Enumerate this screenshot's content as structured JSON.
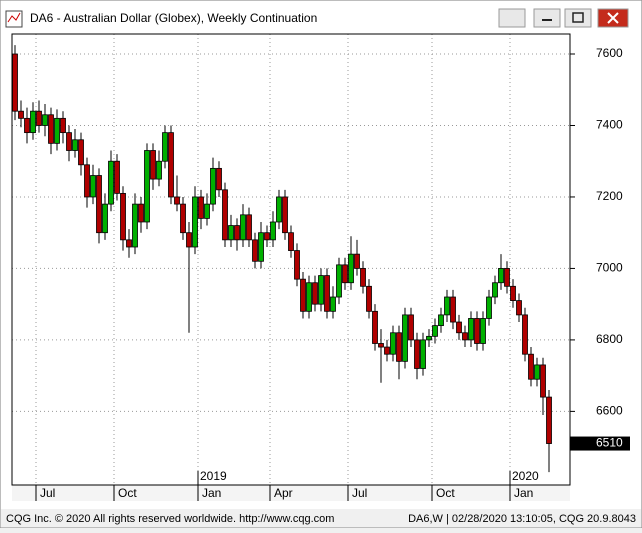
{
  "window_title": "DA6 - Australian Dollar (Globex), Weekly Continuation",
  "footer_left": "CQG Inc. © 2020 All rights reserved worldwide. http://www.cqg.com",
  "footer_right": "DA6,W | 02/28/2020 13:10:05, CQG 20.9.8043",
  "chart_data": {
    "type": "candlestick",
    "up_color": "#00b000",
    "down_color": "#b00000",
    "ylim": [
      6394,
      7656
    ],
    "yticks": [
      6600,
      6800,
      7000,
      7200,
      7400,
      7600
    ],
    "xlim": [
      -0.5,
      92.5
    ],
    "xticks": [
      {
        "value": 3.5,
        "label": "Jul"
      },
      {
        "value": 16.5,
        "label": "Oct"
      },
      {
        "value": 30.5,
        "label": "Jan"
      },
      {
        "value": 42.5,
        "label": "Apr"
      },
      {
        "value": 55.5,
        "label": "Jul"
      },
      {
        "value": 69.5,
        "label": "Oct"
      },
      {
        "value": 82.5,
        "label": "Jan"
      }
    ],
    "year_ticks": [
      {
        "value": 30.5,
        "label": "2019"
      },
      {
        "value": 82.5,
        "label": "2020"
      }
    ],
    "grid": true,
    "ohlc": [
      [
        7600,
        7625,
        7415,
        7440
      ],
      [
        7440,
        7470,
        7395,
        7420
      ],
      [
        7420,
        7450,
        7350,
        7380
      ],
      [
        7380,
        7465,
        7360,
        7440
      ],
      [
        7440,
        7470,
        7380,
        7400
      ],
      [
        7400,
        7460,
        7370,
        7430
      ],
      [
        7430,
        7450,
        7320,
        7350
      ],
      [
        7350,
        7445,
        7330,
        7420
      ],
      [
        7420,
        7440,
        7350,
        7380
      ],
      [
        7380,
        7400,
        7300,
        7330
      ],
      [
        7330,
        7390,
        7310,
        7360
      ],
      [
        7360,
        7380,
        7260,
        7290
      ],
      [
        7290,
        7310,
        7170,
        7200
      ],
      [
        7200,
        7290,
        7180,
        7260
      ],
      [
        7260,
        7280,
        7070,
        7100
      ],
      [
        7100,
        7210,
        7080,
        7180
      ],
      [
        7180,
        7330,
        7160,
        7300
      ],
      [
        7300,
        7320,
        7190,
        7210
      ],
      [
        7210,
        7230,
        7050,
        7080
      ],
      [
        7080,
        7110,
        7030,
        7060
      ],
      [
        7060,
        7210,
        7040,
        7180
      ],
      [
        7180,
        7200,
        7100,
        7130
      ],
      [
        7130,
        7350,
        7110,
        7330
      ],
      [
        7330,
        7350,
        7220,
        7250
      ],
      [
        7250,
        7330,
        7230,
        7300
      ],
      [
        7300,
        7400,
        7280,
        7380
      ],
      [
        7380,
        7400,
        7180,
        7200
      ],
      [
        7200,
        7260,
        7160,
        7180
      ],
      [
        7180,
        7200,
        7080,
        7100
      ],
      [
        7100,
        7130,
        6820,
        7060
      ],
      [
        7060,
        7230,
        7040,
        7200
      ],
      [
        7200,
        7220,
        7110,
        7140
      ],
      [
        7140,
        7210,
        7120,
        7180
      ],
      [
        7180,
        7310,
        7160,
        7280
      ],
      [
        7280,
        7300,
        7200,
        7220
      ],
      [
        7220,
        7240,
        7060,
        7080
      ],
      [
        7080,
        7150,
        7060,
        7120
      ],
      [
        7120,
        7140,
        7050,
        7080
      ],
      [
        7080,
        7180,
        7060,
        7150
      ],
      [
        7150,
        7170,
        7060,
        7080
      ],
      [
        7080,
        7100,
        7000,
        7020
      ],
      [
        7020,
        7130,
        7000,
        7100
      ],
      [
        7100,
        7120,
        7060,
        7080
      ],
      [
        7080,
        7160,
        7060,
        7130
      ],
      [
        7130,
        7220,
        7110,
        7200
      ],
      [
        7200,
        7220,
        7080,
        7100
      ],
      [
        7100,
        7120,
        7030,
        7050
      ],
      [
        7050,
        7070,
        6950,
        6970
      ],
      [
        6970,
        6990,
        6860,
        6880
      ],
      [
        6880,
        6980,
        6860,
        6960
      ],
      [
        6960,
        6980,
        6880,
        6900
      ],
      [
        6900,
        7000,
        6880,
        6980
      ],
      [
        6980,
        7000,
        6860,
        6880
      ],
      [
        6880,
        6950,
        6860,
        6920
      ],
      [
        6920,
        7030,
        6900,
        7010
      ],
      [
        7010,
        7030,
        6940,
        6960
      ],
      [
        6960,
        7090,
        6940,
        7040
      ],
      [
        7040,
        7080,
        6980,
        7000
      ],
      [
        7000,
        7020,
        6930,
        6950
      ],
      [
        6950,
        6970,
        6860,
        6880
      ],
      [
        6880,
        6900,
        6770,
        6790
      ],
      [
        6790,
        6830,
        6680,
        6780
      ],
      [
        6780,
        6800,
        6740,
        6760
      ],
      [
        6760,
        6840,
        6740,
        6820
      ],
      [
        6820,
        6840,
        6690,
        6740
      ],
      [
        6740,
        6890,
        6720,
        6870
      ],
      [
        6870,
        6890,
        6780,
        6800
      ],
      [
        6800,
        6820,
        6690,
        6720
      ],
      [
        6720,
        6820,
        6700,
        6800
      ],
      [
        6800,
        6830,
        6780,
        6810
      ],
      [
        6810,
        6860,
        6790,
        6840
      ],
      [
        6840,
        6890,
        6820,
        6870
      ],
      [
        6870,
        6940,
        6850,
        6920
      ],
      [
        6920,
        6940,
        6830,
        6850
      ],
      [
        6850,
        6870,
        6800,
        6820
      ],
      [
        6820,
        6840,
        6780,
        6800
      ],
      [
        6800,
        6880,
        6780,
        6860
      ],
      [
        6860,
        6880,
        6770,
        6790
      ],
      [
        6790,
        6880,
        6770,
        6860
      ],
      [
        6860,
        6940,
        6840,
        6920
      ],
      [
        6920,
        6980,
        6900,
        6960
      ],
      [
        6960,
        7040,
        6940,
        7000
      ],
      [
        7000,
        7020,
        6930,
        6950
      ],
      [
        6950,
        6970,
        6890,
        6910
      ],
      [
        6910,
        6930,
        6850,
        6870
      ],
      [
        6870,
        6890,
        6740,
        6760
      ],
      [
        6760,
        6780,
        6670,
        6690
      ],
      [
        6690,
        6750,
        6670,
        6730
      ],
      [
        6730,
        6750,
        6590,
        6640
      ],
      [
        6640,
        6660,
        6430,
        6510
      ]
    ]
  }
}
